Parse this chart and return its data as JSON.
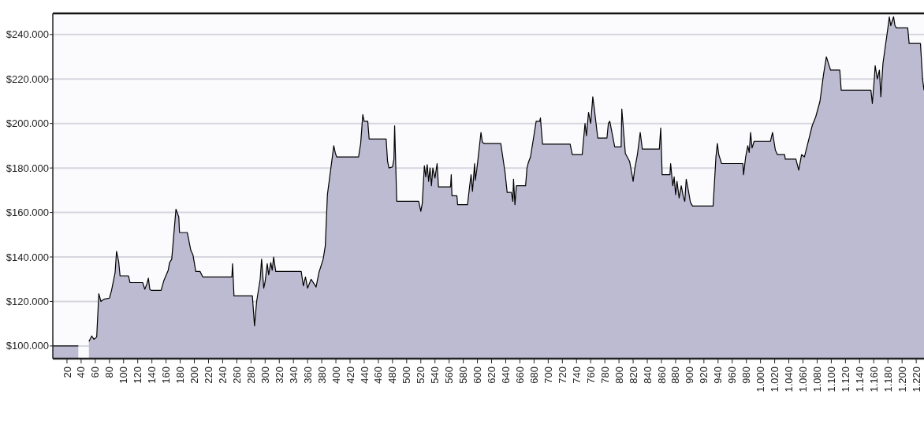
{
  "chart_data": {
    "type": "area",
    "xlim": [
      0,
      1231
    ],
    "ylim": [
      94300,
      249500
    ],
    "xticks": [
      20,
      40,
      60,
      80,
      100,
      120,
      140,
      160,
      180,
      200,
      220,
      240,
      260,
      280,
      300,
      320,
      340,
      360,
      380,
      400,
      420,
      440,
      460,
      480,
      500,
      520,
      540,
      560,
      580,
      600,
      620,
      640,
      660,
      680,
      700,
      720,
      740,
      760,
      780,
      800,
      820,
      840,
      860,
      880,
      900,
      920,
      940,
      960,
      980,
      {
        "value": 1000,
        "label": "1.000"
      },
      {
        "value": 1020,
        "label": "1.020"
      },
      {
        "value": 1040,
        "label": "1.040"
      },
      {
        "value": 1060,
        "label": "1.060"
      },
      {
        "value": 1080,
        "label": "1.080"
      },
      {
        "value": 1100,
        "label": "1.100"
      },
      {
        "value": 1120,
        "label": "1.120"
      },
      {
        "value": 1140,
        "label": "1.140"
      },
      {
        "value": 1160,
        "label": "1.160"
      },
      {
        "value": 1180,
        "label": "1.180"
      },
      {
        "value": 1200,
        "label": "1.200"
      },
      {
        "value": 1220,
        "label": "1.220"
      }
    ],
    "yticks": [
      {
        "value": 100000,
        "label": "$100.000"
      },
      {
        "value": 120000,
        "label": "$120.000"
      },
      {
        "value": 140000,
        "label": "$140.000"
      },
      {
        "value": 160000,
        "label": "$160.000"
      },
      {
        "value": 180000,
        "label": "$180.000"
      },
      {
        "value": 200000,
        "label": "$200.000"
      },
      {
        "value": 220000,
        "label": "$220.000"
      },
      {
        "value": 240000,
        "label": "$240.000"
      }
    ],
    "grid": "y",
    "line_style": "solid",
    "series": [
      {
        "color": "#bcbbd1",
        "x": [
          0,
          36,
          38,
          46,
          51,
          55,
          58,
          62,
          65,
          68,
          72,
          80,
          83,
          88,
          90,
          93,
          95,
          107,
          109,
          127,
          130,
          133,
          135,
          137,
          139,
          153,
          157,
          163,
          165,
          168,
          174,
          178,
          179,
          190,
          195,
          198,
          202,
          208,
          212,
          253,
          254,
          256,
          282,
          285,
          288,
          293,
          295,
          298,
          300,
          303,
          305,
          308,
          310,
          312,
          315,
          351,
          354,
          357,
          360,
          365,
          372,
          376,
          382,
          385,
          388,
          397,
          399,
          401,
          432,
          435,
          438,
          440,
          445,
          447,
          449,
          471,
          473,
          475,
          480,
          482,
          483,
          486,
          517,
          520,
          522,
          525,
          527,
          529,
          531,
          533,
          535,
          537,
          540,
          543,
          545,
          562,
          563,
          564,
          571,
          572,
          586,
          589,
          591,
          593,
          596,
          597,
          599,
          605,
          607,
          610,
          633,
          639,
          642,
          648,
          650,
          651,
          653,
          655,
          668,
          670,
          672,
          675,
          683,
          688,
          689,
          692,
          731,
          734,
          748,
          752,
          754,
          757,
          760,
          763,
          765,
          770,
          783,
          785,
          787,
          794,
          803,
          804,
          809,
          815,
          819,
          820,
          822,
          826,
          830,
          833,
          857,
          859,
          861,
          872,
          873,
          876,
          878,
          880,
          882,
          885,
          888,
          891,
          893,
          895,
          898,
          901,
          904,
          933,
          937,
          939,
          941,
          945,
          975,
          976,
          979,
          982,
          984,
          986,
          988,
          991,
          1014,
          1017,
          1021,
          1024,
          1034,
          1035,
          1050,
          1054,
          1058,
          1062,
          1066,
          1073,
          1078,
          1084,
          1089,
          1093,
          1097,
          1099,
          1112,
          1114,
          1156,
          1158,
          1161,
          1162,
          1165,
          1168,
          1170,
          1173,
          1180,
          1182,
          1184,
          1188,
          1190,
          1192,
          1208,
          1210,
          1226,
          1229,
          1231
        ],
        "values": [
          100000,
          100000,
          null,
          null,
          102000,
          104500,
          103000,
          104000,
          123500,
          120000,
          121000,
          121500,
          125000,
          133000,
          142500,
          138000,
          131500,
          131500,
          128500,
          128500,
          125500,
          128000,
          130500,
          125500,
          125000,
          125000,
          129500,
          134000,
          137500,
          139000,
          161500,
          158000,
          151000,
          151000,
          143000,
          141000,
          133500,
          133500,
          131000,
          131000,
          137000,
          122500,
          122500,
          109000,
          120000,
          130000,
          139000,
          126000,
          129000,
          137000,
          132000,
          137500,
          134000,
          140000,
          133500,
          133500,
          127000,
          131000,
          126000,
          130000,
          126500,
          133000,
          139000,
          145000,
          168000,
          190000,
          187000,
          185000,
          185000,
          191000,
          204000,
          201000,
          201000,
          193000,
          193000,
          193000,
          183000,
          180000,
          180500,
          184000,
          199000,
          165000,
          165000,
          160500,
          164000,
          181000,
          176000,
          181500,
          174000,
          180000,
          172000,
          180000,
          175500,
          182000,
          171500,
          171500,
          177000,
          167500,
          167500,
          163500,
          163500,
          172000,
          177000,
          169500,
          182000,
          174500,
          179000,
          196000,
          191500,
          191000,
          191000,
          178000,
          169000,
          169000,
          165000,
          175000,
          163500,
          172000,
          172000,
          180000,
          182500,
          185000,
          201000,
          201000,
          202500,
          190700,
          190700,
          186000,
          186000,
          200000,
          194500,
          205000,
          200000,
          212000,
          207000,
          193500,
          193500,
          200000,
          201000,
          189500,
          189500,
          206500,
          186500,
          183000,
          176000,
          174000,
          179000,
          186000,
          196000,
          188500,
          188500,
          198000,
          177000,
          177000,
          182000,
          172000,
          176000,
          168000,
          174000,
          166500,
          172000,
          167000,
          165000,
          175000,
          170000,
          164500,
          162900,
          162900,
          185000,
          191000,
          186000,
          182000,
          182000,
          177000,
          185000,
          190000,
          187000,
          196000,
          189000,
          192000,
          192000,
          196000,
          188000,
          186000,
          186000,
          184000,
          184000,
          179000,
          186000,
          185000,
          190000,
          199000,
          203000,
          210000,
          222000,
          230000,
          226000,
          224000,
          224000,
          215000,
          215000,
          209000,
          221000,
          226000,
          220000,
          224000,
          212000,
          227000,
          243000,
          248000,
          244000,
          248000,
          244000,
          243000,
          243000,
          236000,
          236000,
          220000,
          215000
        ]
      }
    ]
  }
}
